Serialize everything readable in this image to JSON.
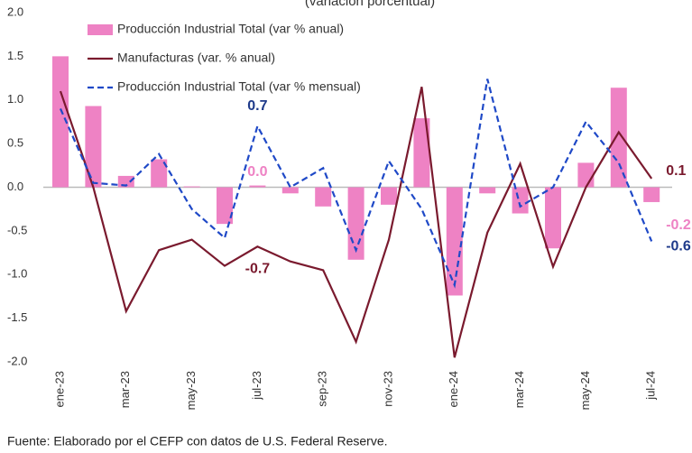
{
  "chart_data": {
    "type": "bar-line",
    "subtitle": "(variación porcentual)",
    "source": "Fuente: Elaborado por el CEFP con datos de U.S. Federal Reserve.",
    "categories": [
      "ene-23",
      null,
      "mar-23",
      null,
      "may-23",
      null,
      "jul-23",
      null,
      "sep-23",
      null,
      "nov-23",
      null,
      "ene-24",
      null,
      "mar-24",
      null,
      "may-24",
      null,
      "jul-24"
    ],
    "ylim": [
      -2,
      2
    ],
    "yticks": [
      {
        "value": 2,
        "label": "2.0"
      },
      {
        "value": 1.5,
        "label": "1.5"
      },
      {
        "value": 1,
        "label": "1.0"
      },
      {
        "value": 0.5,
        "label": "0.5"
      },
      {
        "value": 0,
        "label": "0.0"
      },
      {
        "value": -0.5,
        "label": "-0.5"
      },
      {
        "value": -1,
        "label": "-1.0"
      },
      {
        "value": -1.5,
        "label": "-1.5"
      },
      {
        "value": -2,
        "label": "-2.0"
      }
    ],
    "series": [
      {
        "name": "Producción Industrial Total (var % anual)",
        "kind": "bar",
        "color": "#ee82c4",
        "label_color": "#ee82c4",
        "values": [
          1.5,
          0.93,
          0.13,
          0.32,
          0.01,
          -0.42,
          0.02,
          -0.07,
          -0.22,
          -0.83,
          -0.2,
          0.79,
          -1.24,
          -0.07,
          -0.3,
          -0.7,
          0.28,
          1.14,
          -0.17
        ],
        "value_labels": [
          null,
          null,
          null,
          null,
          null,
          null,
          "0.0",
          null,
          null,
          null,
          null,
          null,
          null,
          null,
          null,
          null,
          null,
          null,
          "-0.2"
        ]
      },
      {
        "name": "Manufacturas (var. % anual)",
        "kind": "line",
        "color": "#7a1a2e",
        "label_color": "#7a1a2e",
        "values": [
          1.1,
          0.0,
          -1.42,
          -0.72,
          -0.6,
          -0.9,
          -0.68,
          -0.85,
          -0.95,
          -1.77,
          -0.6,
          1.15,
          -1.95,
          -0.52,
          0.27,
          -0.91,
          0.0,
          0.63,
          0.1
        ],
        "value_labels": [
          null,
          null,
          null,
          null,
          null,
          null,
          "-0.7",
          null,
          null,
          null,
          null,
          null,
          null,
          null,
          null,
          null,
          null,
          null,
          "0.1"
        ]
      },
      {
        "name": "Producción Industrial Total (var % mensual)",
        "kind": "dashed",
        "color": "#1f49c7",
        "label_color": "#1e3a8a",
        "values": [
          0.9,
          0.05,
          0.02,
          0.38,
          -0.25,
          -0.58,
          0.7,
          0.0,
          0.22,
          -0.72,
          0.3,
          -0.25,
          -1.12,
          1.24,
          -0.22,
          0.0,
          0.75,
          0.28,
          -0.62
        ],
        "value_labels": [
          null,
          null,
          null,
          null,
          null,
          null,
          "0.7",
          null,
          null,
          null,
          null,
          null,
          null,
          null,
          null,
          null,
          null,
          null,
          "-0.6"
        ]
      }
    ]
  }
}
